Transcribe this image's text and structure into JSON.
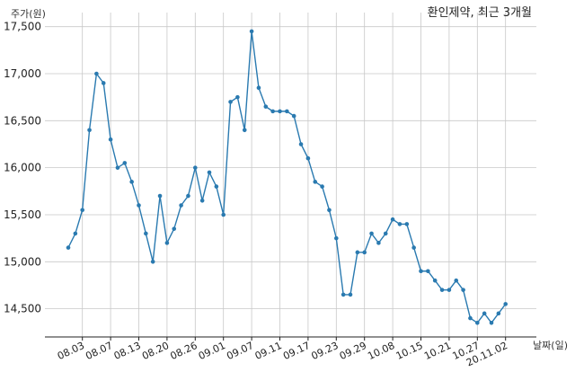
{
  "chart_data": {
    "type": "line",
    "title": "환인제약, 최근 3개월",
    "ylabel": "주가(원)",
    "xlabel": "날짜(일)",
    "ylim": [
      14200,
      17650
    ],
    "yticks": [
      14500,
      15000,
      15500,
      16000,
      16500,
      17000,
      17500
    ],
    "ytick_labels": [
      "14,500",
      "15,000",
      "15,500",
      "16,000",
      "16,500",
      "17,000",
      "17,500"
    ],
    "grid": true,
    "color": "#2a7ab0",
    "xtick_labels": [
      "08.03",
      "08.07",
      "08.13",
      "08.20",
      "08.26",
      "09.01",
      "09.07",
      "09.11",
      "09.17",
      "09.23",
      "09.29",
      "10.08",
      "10.15",
      "10.21",
      "10.27",
      "20.11.02"
    ],
    "values": [
      15150,
      15300,
      15550,
      16400,
      17000,
      16900,
      16300,
      16000,
      16050,
      15850,
      15600,
      15300,
      15000,
      15700,
      15200,
      15350,
      15600,
      15700,
      16000,
      15650,
      15950,
      15800,
      15500,
      16700,
      16750,
      16400,
      17450,
      16850,
      16650,
      16600,
      16600,
      16600,
      16550,
      16250,
      16100,
      15850,
      15800,
      15550,
      15250,
      14650,
      14650,
      15100,
      15100,
      15300,
      15200,
      15300,
      15450,
      15400,
      15400,
      15150,
      14900,
      14900,
      14800,
      14700,
      14700,
      14800,
      14700,
      14400,
      14350,
      14450,
      14350,
      14450,
      14550
    ]
  }
}
